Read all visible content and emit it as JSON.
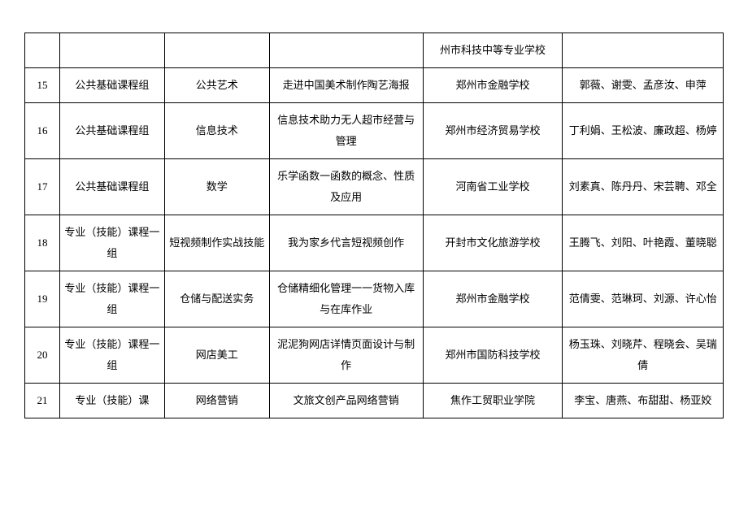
{
  "table": {
    "rows": [
      {
        "num": "",
        "group": "",
        "subject": "",
        "title": "",
        "school": "州市科技中等专业学校",
        "names": ""
      },
      {
        "num": "15",
        "group": "公共基础课程组",
        "subject": "公共艺术",
        "title": "走进中国美术制作陶艺海报",
        "school": "郑州市金融学校",
        "names": "郭薇、谢雯、孟彦汝、申萍"
      },
      {
        "num": "16",
        "group": "公共基础课程组",
        "subject": "信息技术",
        "title": "信息技术助力无人超市经营与管理",
        "school": "郑州市经济贸易学校",
        "names": "丁利娟、王松波、廉政超、杨婷"
      },
      {
        "num": "17",
        "group": "公共基础课程组",
        "subject": "数学",
        "title": "乐学函数一函数的概念、性质及应用",
        "school": "河南省工业学校",
        "names": "刘素真、陈丹丹、宋芸聘、邓全"
      },
      {
        "num": "18",
        "group": "专业（技能）课程一组",
        "subject": "短视频制作实战技能",
        "title": "我为家乡代言短视频创作",
        "school": "开封市文化旅游学校",
        "names": "王腾飞、刘阳、叶艳霞、董晓聪"
      },
      {
        "num": "19",
        "group": "专业（技能）课程一组",
        "subject": "仓储与配送实务",
        "title": "仓储精细化管理一一货物入库与在库作业",
        "school": "郑州市金融学校",
        "names": "范倩雯、范琳珂、刘源、许心怡"
      },
      {
        "num": "20",
        "group": "专业（技能）课程一组",
        "subject": "网店美工",
        "title": "泥泥狗网店详情页面设计与制作",
        "school": "郑州市国防科技学校",
        "names": "杨玉珠、刘晓芹、程晓会、吴瑞倩"
      },
      {
        "num": "21",
        "group": "专业（技能）课",
        "subject": "网络营销",
        "title": "文旅文创产品网络营销",
        "school": "焦作工贸职业学院",
        "names": "李宝、唐燕、布甜甜、杨亚姣"
      }
    ]
  },
  "style": {
    "border_color": "#000000",
    "background_color": "#ffffff",
    "text_color": "#000000",
    "font_size": 13,
    "col_widths": [
      "5%",
      "15%",
      "15%",
      "22%",
      "20%",
      "23%"
    ]
  }
}
